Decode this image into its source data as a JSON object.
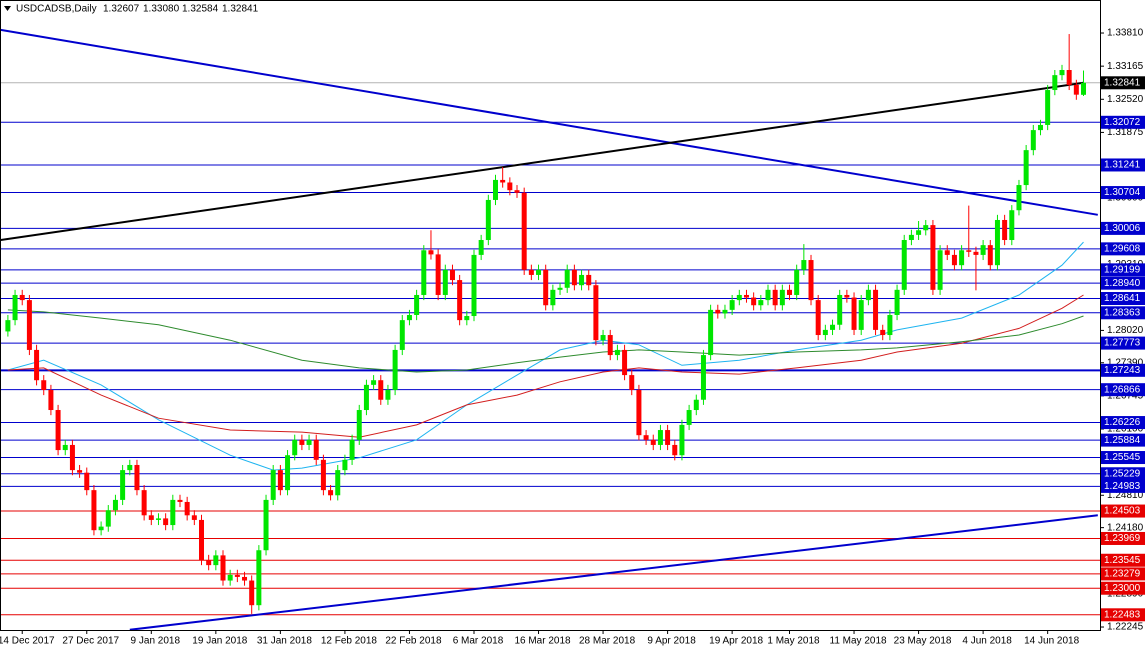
{
  "chart_data": {
    "type": "candlestick",
    "header": {
      "symbol": "USDCADSB,Daily",
      "quote": [
        1.32607,
        {
          "value": 1.3308,
          "label": "1.33080"
        },
        1.32584,
        1.32841
      ]
    },
    "up_color": "#00e600",
    "down_color": "#ff0000",
    "xlim": [
      -1.1,
      152.3
    ],
    "ylim": [
      1.22187,
      1.34453
    ],
    "yticks": [
      {
        "value": 1.3381,
        "label": "1.33810"
      },
      1.33165,
      {
        "value": 1.3252,
        "label": "1.32520"
      },
      1.31875,
      {
        "value": 1.306,
        "label": "1.30600"
      },
      {
        "value": 1.2931,
        "label": "1.29310"
      },
      {
        "value": 1.2802,
        "label": "1.28020"
      },
      {
        "value": 1.2739,
        "label": "1.27390"
      },
      1.26745,
      {
        "value": 1.261,
        "label": "1.26100"
      },
      {
        "value": 1.2481,
        "label": "1.24810"
      },
      {
        "value": 1.2418,
        "label": "1.24180"
      },
      {
        "value": 1.2289,
        "label": "1.22890"
      },
      1.22245
    ],
    "categories": [
      null,
      null,
      "14 Dec 2017",
      null,
      null,
      null,
      null,
      null,
      null,
      null,
      null,
      "27 Dec 2017",
      null,
      null,
      null,
      null,
      null,
      null,
      null,
      null,
      "9 Jan 2018",
      null,
      null,
      null,
      null,
      null,
      null,
      null,
      null,
      "19 Jan 2018",
      null,
      null,
      null,
      null,
      null,
      null,
      null,
      null,
      "31 Jan 2018",
      null,
      null,
      null,
      null,
      null,
      null,
      null,
      null,
      "12 Feb 2018",
      null,
      null,
      null,
      null,
      null,
      null,
      null,
      null,
      "22 Feb 2018",
      null,
      null,
      null,
      null,
      null,
      null,
      null,
      null,
      "6 Mar 2018",
      null,
      null,
      null,
      null,
      null,
      null,
      null,
      null,
      "16 Mar 2018",
      null,
      null,
      null,
      null,
      null,
      null,
      null,
      null,
      "28 Mar 2018",
      null,
      null,
      null,
      null,
      null,
      null,
      null,
      null,
      "9 Apr 2018",
      null,
      null,
      null,
      null,
      null,
      null,
      null,
      null,
      "19 Apr 2018",
      null,
      null,
      null,
      null,
      null,
      null,
      null,
      "1 May 2018",
      null,
      null,
      null,
      null,
      null,
      null,
      null,
      null,
      "11 May 2018",
      null,
      null,
      null,
      null,
      null,
      null,
      null,
      null,
      "23 May 2018",
      null,
      null,
      null,
      null,
      null,
      null,
      null,
      null,
      "4 Jun 2018",
      null,
      null,
      null,
      null,
      null,
      null,
      null,
      null,
      "14 Jun 2018",
      null,
      null,
      null,
      null,
      null
    ],
    "open": [
      1.28,
      1.2822,
      1.2871,
      1.2861,
      1.2764,
      1.2705,
      1.2686,
      1.2647,
      1.2569,
      1.2579,
      1.253,
      1.2525,
      1.2491,
      1.2413,
      1.242,
      1.2452,
      1.2472,
      1.253,
      1.254,
      1.2491,
      1.2442,
      1.2433,
      1.2436,
      1.2423,
      1.2472,
      1.2468,
      1.2442,
      1.2433,
      1.2355,
      1.2345,
      1.2364,
      1.2315,
      1.2326,
      1.2322,
      1.2315,
      1.2267,
      1.2374,
      1.2472,
      1.253,
      1.2491,
      1.2559,
      1.2589,
      1.2579,
      1.2589,
      1.255,
      1.2491,
      1.2481,
      1.253,
      1.255,
      1.2589,
      1.2647,
      1.2696,
      1.2705,
      1.2667,
      1.2686,
      1.2764,
      1.2822,
      1.2832,
      1.2871,
      1.2958,
      1.295,
      1.2871,
      1.292,
      1.29,
      1.2822,
      1.283,
      1.2949,
      1.2978,
      1.3056,
      1.3095,
      1.309,
      1.3075,
      1.307,
      1.292,
      1.291,
      1.292,
      1.2851,
      1.2881,
      1.2885,
      1.292,
      1.289,
      1.291,
      1.289,
      1.2783,
      1.2793,
      1.2754,
      1.2764,
      1.2715,
      1.2686,
      1.2598,
      1.2589,
      1.2579,
      1.2608,
      1.2579,
      1.2559,
      1.2618,
      1.2647,
      1.2667,
      1.2754,
      1.2842,
      1.2835,
      1.2842,
      1.2861,
      1.2871,
      1.2866,
      1.2851,
      1.2861,
      1.2881,
      1.2851,
      1.2881,
      1.2871,
      1.292,
      1.2939,
      1.2861,
      1.2793,
      1.2803,
      1.2813,
      1.2871,
      1.2866,
      1.2803,
      1.2861,
      1.2881,
      1.2803,
      1.2793,
      1.2832,
      1.2881,
      1.2978,
      1.2988,
      1.2997,
      1.3007,
      1.2881,
      1.2958,
      1.2949,
      1.2929,
      1.2958,
      1.2955,
      1.2949,
      1.2968,
      1.2929,
      1.3017,
      1.2978,
      1.3036,
      1.3085,
      1.3153,
      1.3192,
      1.3202,
      1.327,
      1.3299,
      1.3309,
      1.328,
      1.32607
    ],
    "high": [
      1.2832,
      1.2881,
      1.2881,
      1.2871,
      1.2774,
      1.2715,
      1.2696,
      1.2657,
      1.2589,
      1.2589,
      1.254,
      1.2535,
      1.2501,
      1.243,
      1.2462,
      1.2482,
      1.254,
      1.255,
      1.255,
      1.2501,
      1.2452,
      1.2446,
      1.2446,
      1.2482,
      1.2482,
      1.2478,
      1.2452,
      1.2443,
      1.2365,
      1.2374,
      1.2374,
      1.2336,
      1.2336,
      1.2332,
      1.2325,
      1.2384,
      1.2482,
      1.254,
      1.254,
      1.2569,
      1.2599,
      1.2599,
      1.2599,
      1.2599,
      1.256,
      1.2501,
      1.254,
      1.256,
      1.2599,
      1.2657,
      1.2706,
      1.2715,
      1.2715,
      1.2696,
      1.2774,
      1.2832,
      1.2842,
      1.2881,
      1.2968,
      1.2997,
      1.296,
      1.293,
      1.293,
      1.291,
      1.284,
      1.2959,
      1.2988,
      1.3066,
      1.3105,
      1.312,
      1.31,
      1.3085,
      1.308,
      1.293,
      1.293,
      1.293,
      1.2891,
      1.2895,
      1.293,
      1.293,
      1.292,
      1.292,
      1.29,
      1.2803,
      1.2803,
      1.2774,
      1.2774,
      1.2725,
      1.2696,
      1.2608,
      1.2599,
      1.2618,
      1.2618,
      1.2589,
      1.2628,
      1.2657,
      1.2677,
      1.2764,
      1.2852,
      1.2852,
      1.2852,
      1.2871,
      1.2881,
      1.2881,
      1.2876,
      1.2871,
      1.2891,
      1.2891,
      1.2891,
      1.2891,
      1.293,
      1.297,
      1.2949,
      1.2871,
      1.2813,
      1.2823,
      1.2881,
      1.2881,
      1.2876,
      1.2871,
      1.2891,
      1.2891,
      1.2813,
      1.2842,
      1.2891,
      1.2988,
      1.2998,
      1.3015,
      1.3017,
      1.3017,
      1.2968,
      1.2968,
      1.2959,
      1.2968,
      1.3045,
      1.2965,
      1.2978,
      1.2978,
      1.3027,
      1.3027,
      1.3046,
      1.3095,
      1.3163,
      1.3202,
      1.3212,
      1.328,
      1.3309,
      1.3319,
      1.3379,
      1.329,
      1.3308
    ],
    "low": [
      1.279,
      1.2812,
      1.2851,
      1.2754,
      1.2695,
      1.2676,
      1.2637,
      1.2559,
      1.2559,
      1.252,
      1.2515,
      1.2481,
      1.2403,
      1.2403,
      1.241,
      1.2442,
      1.2462,
      1.252,
      1.2481,
      1.2432,
      1.2423,
      1.2423,
      1.2413,
      1.2413,
      1.2458,
      1.2432,
      1.2423,
      1.2345,
      1.2335,
      1.2335,
      1.2305,
      1.2305,
      1.2312,
      1.2305,
      1.225,
      1.2257,
      1.2364,
      1.2462,
      1.2481,
      1.2481,
      1.2549,
      1.2569,
      1.2569,
      1.254,
      1.2481,
      1.2471,
      1.2471,
      1.252,
      1.254,
      1.2579,
      1.2637,
      1.2686,
      1.2657,
      1.2657,
      1.2676,
      1.2754,
      1.2812,
      1.2822,
      1.2861,
      1.294,
      1.2861,
      1.2861,
      1.289,
      1.2812,
      1.2812,
      1.282,
      1.2939,
      1.2968,
      1.3046,
      1.308,
      1.3065,
      1.306,
      1.291,
      1.29,
      1.29,
      1.2841,
      1.2841,
      1.2871,
      1.2875,
      1.288,
      1.288,
      1.288,
      1.2773,
      1.2773,
      1.2744,
      1.2744,
      1.2705,
      1.2676,
      1.2588,
      1.2579,
      1.2569,
      1.2569,
      1.2569,
      1.2549,
      1.2549,
      1.2608,
      1.2637,
      1.2657,
      1.2744,
      1.2825,
      1.2825,
      1.2832,
      1.2851,
      1.2856,
      1.2841,
      1.2841,
      1.2851,
      1.2841,
      1.2841,
      1.2861,
      1.2861,
      1.291,
      1.2851,
      1.2783,
      1.2783,
      1.2793,
      1.2803,
      1.2856,
      1.2793,
      1.2793,
      1.2851,
      1.2793,
      1.2783,
      1.2783,
      1.2822,
      1.2871,
      1.2968,
      1.2978,
      1.2987,
      1.2871,
      1.2871,
      1.2939,
      1.2919,
      1.2919,
      1.2945,
      1.288,
      1.2939,
      1.2919,
      1.2919,
      1.2968,
      1.2968,
      1.3026,
      1.3075,
      1.3143,
      1.3182,
      1.3192,
      1.326,
      1.3289,
      1.327,
      1.3251,
      1.32584
    ],
    "close": [
      1.2822,
      1.2871,
      1.2861,
      1.2764,
      1.2705,
      1.2686,
      1.2647,
      1.2569,
      1.2579,
      1.253,
      1.2525,
      1.2491,
      1.2413,
      1.242,
      1.2452,
      1.2472,
      1.253,
      1.254,
      1.2491,
      1.2442,
      1.2433,
      1.2436,
      1.2423,
      1.2472,
      1.2468,
      1.2442,
      1.2433,
      1.2355,
      1.2345,
      1.2364,
      1.2315,
      1.2326,
      1.2322,
      1.2315,
      1.2267,
      1.2374,
      1.2472,
      1.253,
      1.2491,
      1.2559,
      1.2589,
      1.2579,
      1.2589,
      1.255,
      1.2491,
      1.2481,
      1.253,
      1.255,
      1.2589,
      1.2647,
      1.2696,
      1.2705,
      1.2667,
      1.2686,
      1.2764,
      1.2822,
      1.2832,
      1.2871,
      1.2958,
      1.295,
      1.2871,
      1.292,
      1.29,
      1.2822,
      1.283,
      1.2949,
      1.2978,
      1.3056,
      1.3095,
      1.309,
      1.3075,
      1.307,
      1.292,
      1.291,
      1.292,
      1.2851,
      1.2881,
      1.2885,
      1.292,
      1.289,
      1.291,
      1.289,
      1.2783,
      1.2793,
      1.2754,
      1.2764,
      1.2715,
      1.2686,
      1.2598,
      1.2589,
      1.2579,
      1.2608,
      1.2579,
      1.2559,
      1.2618,
      1.2647,
      1.2667,
      1.2754,
      1.2842,
      1.2835,
      1.2842,
      1.2861,
      1.2871,
      1.2866,
      1.2851,
      1.2861,
      1.2881,
      1.2851,
      1.2881,
      1.2871,
      1.292,
      1.2939,
      1.2861,
      1.2793,
      1.2803,
      1.2813,
      1.2871,
      1.2866,
      1.2803,
      1.2861,
      1.2881,
      1.2803,
      1.2793,
      1.2832,
      1.2881,
      1.2978,
      1.2988,
      1.2997,
      1.3007,
      1.2881,
      1.2958,
      1.2949,
      1.2929,
      1.2958,
      1.2955,
      1.2949,
      1.2968,
      1.2929,
      1.3017,
      1.2978,
      1.3036,
      1.3085,
      1.3153,
      1.3192,
      1.3202,
      1.327,
      1.3299,
      1.3309,
      1.328,
      1.3261,
      1.32841
    ],
    "moving_averages": [
      {
        "color": "#1eb4f0",
        "x": [
          0,
          5,
          13,
          21,
          31,
          37,
          41,
          49,
          57,
          64,
          71,
          77,
          83,
          88,
          94,
          102,
          110,
          119,
          124,
          133,
          141,
          147,
          150
        ],
        "values": [
          1.2725,
          1.2744,
          1.2696,
          1.2628,
          1.2559,
          1.253,
          1.2534,
          1.2554,
          1.2589,
          1.2657,
          1.2715,
          1.2764,
          1.2783,
          1.2774,
          1.2734,
          1.2744,
          1.2764,
          1.2783,
          1.2803,
          1.2826,
          1.2871,
          1.2929,
          1.2974
        ]
      },
      {
        "color": "#d21e1e",
        "x": [
          0,
          5,
          13,
          21,
          31,
          41,
          49,
          57,
          64,
          71,
          77,
          83,
          88,
          94,
          102,
          110,
          119,
          124,
          133,
          141,
          147,
          150
        ],
        "values": [
          1.2725,
          1.2729,
          1.2676,
          1.2631,
          1.2608,
          1.2604,
          1.2594,
          1.2618,
          1.2657,
          1.2676,
          1.2702,
          1.2721,
          1.2729,
          1.2721,
          1.2717,
          1.2729,
          1.2744,
          1.276,
          1.2777,
          1.2806,
          1.2845,
          1.2871
        ]
      },
      {
        "color": "#2e8b2e",
        "x": [
          0,
          5,
          13,
          21,
          31,
          41,
          49,
          57,
          64,
          71,
          77,
          83,
          88,
          94,
          102,
          110,
          119,
          124,
          133,
          141,
          147,
          150
        ],
        "values": [
          1.2842,
          1.2838,
          1.2826,
          1.2813,
          1.2783,
          1.2744,
          1.2729,
          1.2721,
          1.2725,
          1.2739,
          1.275,
          1.276,
          1.2764,
          1.276,
          1.2754,
          1.276,
          1.2764,
          1.2768,
          1.278,
          1.2793,
          1.2815,
          1.283
        ]
      }
    ],
    "trendlines": [
      {
        "color": "#0000cd",
        "x": [
          -1,
          152
        ],
        "values": [
          1.3387,
          1.3027
        ]
      },
      {
        "color": "#000000",
        "x": [
          -1,
          150
        ],
        "values": [
          1.2978,
          1.3284
        ]
      },
      {
        "color": "#0000cd",
        "x": [
          17,
          152
        ],
        "values": [
          1.2219,
          1.2442
        ]
      }
    ],
    "bid": {
      "value": 1.32841,
      "color": "#b4b4b4"
    },
    "levels": [
      {
        "value": 1.32072,
        "color": "#0000cd"
      },
      {
        "value": 1.31241,
        "color": "#0000cd"
      },
      {
        "value": 1.30704,
        "color": "#0000cd"
      },
      {
        "value": 1.30006,
        "color": "#0000cd"
      },
      {
        "value": 1.29608,
        "color": "#0000cd"
      },
      {
        "value": 1.29199,
        "color": "#0000cd"
      },
      {
        "value": 1.2894,
        "label": "1.28940",
        "color": "#0000cd"
      },
      {
        "value": 1.28641,
        "color": "#0000cd"
      },
      {
        "value": 1.28363,
        "color": "#0000cd"
      },
      {
        "value": 1.27773,
        "color": "#0000cd"
      },
      {
        "value": 1.27243,
        "color": "#0000cd",
        "width": 2
      },
      {
        "value": 1.26866,
        "color": "#0000cd"
      },
      {
        "value": 1.26226,
        "color": "#0000cd"
      },
      {
        "value": 1.25884,
        "color": "#0000cd"
      },
      {
        "value": 1.25545,
        "color": "#0000cd"
      },
      {
        "value": 1.25229,
        "color": "#0000cd"
      },
      {
        "value": 1.24983,
        "color": "#0000cd"
      },
      {
        "value": 1.24503,
        "color": "#e60000"
      },
      {
        "value": 1.23969,
        "color": "#e60000"
      },
      {
        "value": 1.23545,
        "color": "#e60000"
      },
      {
        "value": 1.23279,
        "color": "#e60000"
      },
      {
        "value": 1.23,
        "label": "1.23000",
        "color": "#e60000"
      },
      {
        "value": 1.22483,
        "color": "#e60000"
      }
    ]
  }
}
